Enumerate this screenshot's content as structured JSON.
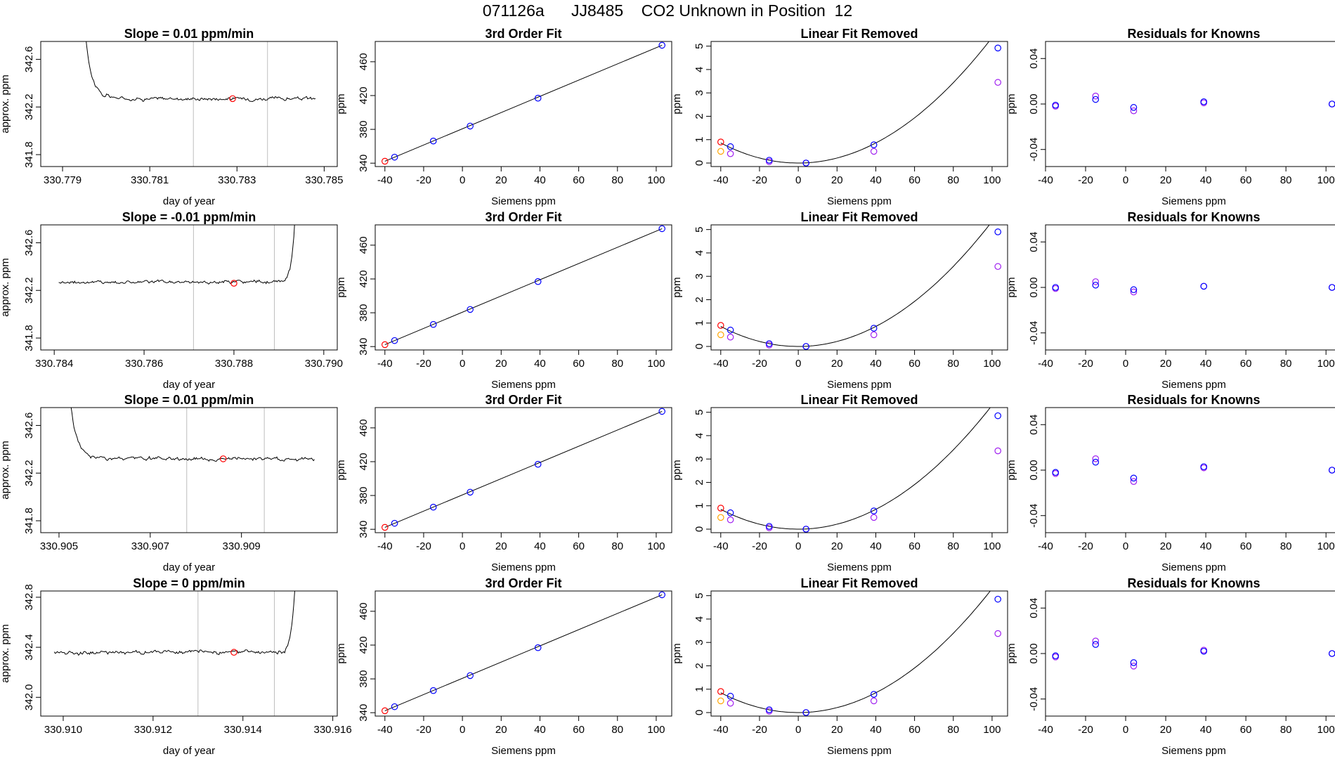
{
  "page_title": "071126a      JJ8485    CO2 Unknown in Position  12",
  "colors": {
    "trace": "#000000",
    "window_line": "#bebebe",
    "known": "#0000ff",
    "unknown": "#ff0000",
    "removed_known": "#a020f0",
    "removed_unknown": "#ffa500",
    "fit_curve": "#000000",
    "residual_a": "#0000ff",
    "residual_b": "#a020f0"
  },
  "chart_data": [
    {
      "type": "line",
      "row": 0,
      "panel": "trace",
      "title": "Slope =  0.01  ppm/min",
      "xlabel": "day of year",
      "ylabel": "approx. ppm",
      "xlim": [
        330.7785,
        330.7853
      ],
      "ylim": [
        341.7,
        342.75
      ],
      "xticks": [
        "330.779",
        "330.781",
        "330.783",
        "330.785"
      ],
      "yticks": [
        "341.8",
        "342.2",
        "342.6"
      ],
      "vlines": [
        330.782,
        330.7837
      ],
      "marker": {
        "x": 330.7829,
        "y": 342.27
      },
      "trace": {
        "x0": 330.7794,
        "x1": 330.7848,
        "base": 342.27,
        "start_high": true,
        "spike_end": false
      }
    },
    {
      "type": "line",
      "row": 1,
      "panel": "trace",
      "title": "Slope =  -0.01  ppm/min",
      "xlabel": "day of year",
      "ylabel": "approx. ppm",
      "xlim": [
        330.7837,
        330.7903
      ],
      "ylim": [
        341.7,
        342.75
      ],
      "xticks": [
        "330.784",
        "330.786",
        "330.788",
        "330.790"
      ],
      "yticks": [
        "341.8",
        "342.2",
        "342.6"
      ],
      "vlines": [
        330.7871,
        330.7889
      ],
      "marker": {
        "x": 330.788,
        "y": 342.26
      },
      "trace": {
        "x0": 330.7841,
        "x1": 330.7894,
        "base": 342.27,
        "start_high": false,
        "spike_end": true
      }
    },
    {
      "type": "line",
      "row": 2,
      "panel": "trace",
      "title": "Slope =  0.01  ppm/min",
      "xlabel": "day of year",
      "ylabel": "approx. ppm",
      "xlim": [
        330.9046,
        330.9111
      ],
      "ylim": [
        341.7,
        342.75
      ],
      "xticks": [
        "330.905",
        "330.907",
        "330.909"
      ],
      "yticks": [
        "341.8",
        "342.2",
        "342.6"
      ],
      "vlines": [
        330.9078,
        330.9095
      ],
      "marker": {
        "x": 330.9086,
        "y": 342.32
      },
      "trace": {
        "x0": 330.9051,
        "x1": 330.9106,
        "base": 342.32,
        "start_high": true,
        "spike_end": false
      }
    },
    {
      "type": "line",
      "row": 3,
      "panel": "trace",
      "title": "Slope =  0  ppm/min",
      "xlabel": "day of year",
      "ylabel": "approx. ppm",
      "xlim": [
        330.9095,
        330.9161
      ],
      "ylim": [
        341.85,
        342.85
      ],
      "xticks": [
        "330.910",
        "330.912",
        "330.914",
        "330.916"
      ],
      "yticks": [
        "342.0",
        "342.4",
        "342.8"
      ],
      "vlines": [
        330.913,
        330.9147
      ],
      "marker": {
        "x": 330.9138,
        "y": 342.36
      },
      "trace": {
        "x0": 330.9098,
        "x1": 330.9152,
        "base": 342.36,
        "start_high": false,
        "spike_end": true
      }
    },
    {
      "type": "scatter",
      "row": 0,
      "panel": "fit",
      "title": "3rd Order Fit",
      "xlabel": "Siemens ppm",
      "ylabel": "ppm",
      "xlim": [
        -45,
        108
      ],
      "ylim": [
        336,
        484
      ],
      "xticks": [
        -40,
        -20,
        0,
        20,
        40,
        60,
        80,
        100
      ],
      "yticks": [
        340,
        380,
        420,
        460
      ],
      "knowns": [
        {
          "x": -35,
          "y": 347.1
        },
        {
          "x": -15,
          "y": 366.2
        },
        {
          "x": 4,
          "y": 383.9
        },
        {
          "x": 39,
          "y": 416.9
        },
        {
          "x": 103,
          "y": 479.5
        }
      ],
      "unknown": {
        "x": -40,
        "y": 342.3
      },
      "fit_line": [
        [
          -40,
          342.3
        ],
        [
          103,
          479.5
        ]
      ]
    },
    {
      "type": "scatter",
      "row": 1,
      "panel": "fit",
      "title": "3rd Order Fit",
      "xlabel": "Siemens ppm",
      "ylabel": "ppm",
      "xlim": [
        -45,
        108
      ],
      "ylim": [
        336,
        484
      ],
      "xticks": [
        -40,
        -20,
        0,
        20,
        40,
        60,
        80,
        100
      ],
      "yticks": [
        340,
        380,
        420,
        460
      ],
      "knowns": [
        {
          "x": -35,
          "y": 347.1
        },
        {
          "x": -15,
          "y": 366.2
        },
        {
          "x": 4,
          "y": 383.9
        },
        {
          "x": 39,
          "y": 416.9
        },
        {
          "x": 103,
          "y": 479.5
        }
      ],
      "unknown": {
        "x": -40,
        "y": 342.3
      },
      "fit_line": [
        [
          -40,
          342.3
        ],
        [
          103,
          479.5
        ]
      ]
    },
    {
      "type": "scatter",
      "row": 2,
      "panel": "fit",
      "title": "3rd Order Fit",
      "xlabel": "Siemens ppm",
      "ylabel": "ppm",
      "xlim": [
        -45,
        108
      ],
      "ylim": [
        336,
        484
      ],
      "xticks": [
        -40,
        -20,
        0,
        20,
        40,
        60,
        80,
        100
      ],
      "yticks": [
        340,
        380,
        420,
        460
      ],
      "knowns": [
        {
          "x": -35,
          "y": 347.1
        },
        {
          "x": -15,
          "y": 366.2
        },
        {
          "x": 4,
          "y": 383.9
        },
        {
          "x": 39,
          "y": 416.9
        },
        {
          "x": 103,
          "y": 479.5
        }
      ],
      "unknown": {
        "x": -40,
        "y": 342.3
      },
      "fit_line": [
        [
          -40,
          342.3
        ],
        [
          103,
          479.5
        ]
      ]
    },
    {
      "type": "scatter",
      "row": 3,
      "panel": "fit",
      "title": "3rd Order Fit",
      "xlabel": "Siemens ppm",
      "ylabel": "ppm",
      "xlim": [
        -45,
        108
      ],
      "ylim": [
        336,
        484
      ],
      "xticks": [
        -40,
        -20,
        0,
        20,
        40,
        60,
        80,
        100
      ],
      "yticks": [
        340,
        380,
        420,
        460
      ],
      "knowns": [
        {
          "x": -35,
          "y": 347.1
        },
        {
          "x": -15,
          "y": 366.2
        },
        {
          "x": 4,
          "y": 383.9
        },
        {
          "x": 39,
          "y": 416.9
        },
        {
          "x": 103,
          "y": 479.5
        }
      ],
      "unknown": {
        "x": -40,
        "y": 342.3
      },
      "fit_line": [
        [
          -40,
          342.3
        ],
        [
          103,
          479.5
        ]
      ]
    },
    {
      "type": "scatter",
      "row": 0,
      "panel": "linear",
      "title": "Linear Fit Removed",
      "xlabel": "Siemens ppm",
      "ylabel": "ppm",
      "xlim": [
        -45,
        108
      ],
      "ylim": [
        -0.15,
        5.2
      ],
      "xticks": [
        -40,
        -20,
        0,
        20,
        40,
        60,
        80,
        100
      ],
      "yticks": [
        0,
        1,
        2,
        3,
        4,
        5
      ],
      "knowns": [
        {
          "x": -35,
          "y": 0.7
        },
        {
          "x": -15,
          "y": 0.12
        },
        {
          "x": 4,
          "y": 0.0
        },
        {
          "x": 39,
          "y": 0.78
        },
        {
          "x": 103,
          "y": 4.92
        }
      ],
      "removed_knowns": [
        {
          "x": -35,
          "y": 0.4
        },
        {
          "x": -15,
          "y": 0.06
        },
        {
          "x": 4,
          "y": 0.0
        },
        {
          "x": 39,
          "y": 0.5
        },
        {
          "x": 103,
          "y": 3.45
        }
      ],
      "unknown": {
        "x": -40,
        "y": 0.9
      },
      "removed_unknown": {
        "x": -40,
        "y": 0.5
      },
      "curve": {
        "a": 0.000537,
        "x0": 0,
        "x1": 103
      }
    },
    {
      "type": "scatter",
      "row": 1,
      "panel": "linear",
      "title": "Linear Fit Removed",
      "xlabel": "Siemens ppm",
      "ylabel": "ppm",
      "xlim": [
        -45,
        108
      ],
      "ylim": [
        -0.15,
        5.2
      ],
      "xticks": [
        -40,
        -20,
        0,
        20,
        40,
        60,
        80,
        100
      ],
      "yticks": [
        0,
        1,
        2,
        3,
        4,
        5
      ],
      "knowns": [
        {
          "x": -35,
          "y": 0.7
        },
        {
          "x": -15,
          "y": 0.12
        },
        {
          "x": 4,
          "y": 0.0
        },
        {
          "x": 39,
          "y": 0.78
        },
        {
          "x": 103,
          "y": 4.9
        }
      ],
      "removed_knowns": [
        {
          "x": -35,
          "y": 0.4
        },
        {
          "x": -15,
          "y": 0.06
        },
        {
          "x": 4,
          "y": 0.0
        },
        {
          "x": 39,
          "y": 0.5
        },
        {
          "x": 103,
          "y": 3.42
        }
      ],
      "unknown": {
        "x": -40,
        "y": 0.9
      },
      "removed_unknown": {
        "x": -40,
        "y": 0.5
      },
      "curve": {
        "a": 0.000535,
        "x0": 0,
        "x1": 103
      }
    },
    {
      "type": "scatter",
      "row": 2,
      "panel": "linear",
      "title": "Linear Fit Removed",
      "xlabel": "Siemens ppm",
      "ylabel": "ppm",
      "xlim": [
        -45,
        108
      ],
      "ylim": [
        -0.15,
        5.2
      ],
      "xticks": [
        -40,
        -20,
        0,
        20,
        40,
        60,
        80,
        100
      ],
      "yticks": [
        0,
        1,
        2,
        3,
        4,
        5
      ],
      "knowns": [
        {
          "x": -35,
          "y": 0.7
        },
        {
          "x": -15,
          "y": 0.12
        },
        {
          "x": 4,
          "y": 0.0
        },
        {
          "x": 39,
          "y": 0.78
        },
        {
          "x": 103,
          "y": 4.85
        }
      ],
      "removed_knowns": [
        {
          "x": -35,
          "y": 0.4
        },
        {
          "x": -15,
          "y": 0.06
        },
        {
          "x": 4,
          "y": 0.0
        },
        {
          "x": 39,
          "y": 0.5
        },
        {
          "x": 103,
          "y": 3.35
        }
      ],
      "unknown": {
        "x": -40,
        "y": 0.9
      },
      "removed_unknown": {
        "x": -40,
        "y": 0.5
      },
      "curve": {
        "a": 0.00053,
        "x0": 0,
        "x1": 103
      }
    },
    {
      "type": "scatter",
      "row": 3,
      "panel": "linear",
      "title": "Linear Fit Removed",
      "xlabel": "Siemens ppm",
      "ylabel": "ppm",
      "xlim": [
        -45,
        108
      ],
      "ylim": [
        -0.15,
        5.2
      ],
      "xticks": [
        -40,
        -20,
        0,
        20,
        40,
        60,
        80,
        100
      ],
      "yticks": [
        0,
        1,
        2,
        3,
        4,
        5
      ],
      "knowns": [
        {
          "x": -35,
          "y": 0.7
        },
        {
          "x": -15,
          "y": 0.12
        },
        {
          "x": 4,
          "y": 0.0
        },
        {
          "x": 39,
          "y": 0.78
        },
        {
          "x": 103,
          "y": 4.85
        }
      ],
      "removed_knowns": [
        {
          "x": -35,
          "y": 0.4
        },
        {
          "x": -15,
          "y": 0.06
        },
        {
          "x": 4,
          "y": 0.0
        },
        {
          "x": 39,
          "y": 0.5
        },
        {
          "x": 103,
          "y": 3.38
        }
      ],
      "unknown": {
        "x": -40,
        "y": 0.9
      },
      "removed_unknown": {
        "x": -40,
        "y": 0.5
      },
      "curve": {
        "a": 0.00053,
        "x0": 0,
        "x1": 103
      }
    },
    {
      "type": "scatter",
      "row": 0,
      "panel": "residuals",
      "title": "Residuals for Knowns",
      "xlabel": "Siemens ppm",
      "ylabel": "ppm",
      "xlim": [
        -40,
        108
      ],
      "ylim": [
        -0.055,
        0.055
      ],
      "xticks": [
        -40,
        -20,
        0,
        20,
        40,
        60,
        80,
        100
      ],
      "yticks": [
        "-0.04",
        "0.00",
        "0.04"
      ],
      "points_a": [
        {
          "x": -35,
          "y": -0.001
        },
        {
          "x": -15,
          "y": 0.004
        },
        {
          "x": 4,
          "y": -0.003
        },
        {
          "x": 39,
          "y": 0.002
        },
        {
          "x": 103,
          "y": 0.0
        }
      ],
      "points_b": [
        {
          "x": -35,
          "y": -0.002
        },
        {
          "x": -15,
          "y": 0.007
        },
        {
          "x": 4,
          "y": -0.006
        },
        {
          "x": 39,
          "y": 0.001
        },
        {
          "x": 103,
          "y": 0.0
        }
      ]
    },
    {
      "type": "scatter",
      "row": 1,
      "panel": "residuals",
      "title": "Residuals for Knowns",
      "xlabel": "Siemens ppm",
      "ylabel": "ppm",
      "xlim": [
        -40,
        108
      ],
      "ylim": [
        -0.055,
        0.055
      ],
      "xticks": [
        -40,
        -20,
        0,
        20,
        40,
        60,
        80,
        100
      ],
      "yticks": [
        "-0.04",
        "0.00",
        "0.04"
      ],
      "points_a": [
        {
          "x": -35,
          "y": 0.0
        },
        {
          "x": -15,
          "y": 0.002
        },
        {
          "x": 4,
          "y": -0.002
        },
        {
          "x": 39,
          "y": 0.001
        },
        {
          "x": 103,
          "y": 0.0
        }
      ],
      "points_b": [
        {
          "x": -35,
          "y": -0.001
        },
        {
          "x": -15,
          "y": 0.005
        },
        {
          "x": 4,
          "y": -0.004
        },
        {
          "x": 39,
          "y": 0.001
        },
        {
          "x": 103,
          "y": 0.0
        }
      ]
    },
    {
      "type": "scatter",
      "row": 2,
      "panel": "residuals",
      "title": "Residuals for Knowns",
      "xlabel": "Siemens ppm",
      "ylabel": "ppm",
      "xlim": [
        -40,
        108
      ],
      "ylim": [
        -0.055,
        0.055
      ],
      "xticks": [
        -40,
        -20,
        0,
        20,
        40,
        60,
        80,
        100
      ],
      "yticks": [
        "-0.04",
        "0.00",
        "0.04"
      ],
      "points_a": [
        {
          "x": -35,
          "y": -0.002
        },
        {
          "x": -15,
          "y": 0.007
        },
        {
          "x": 4,
          "y": -0.007
        },
        {
          "x": 39,
          "y": 0.003
        },
        {
          "x": 103,
          "y": 0.0
        }
      ],
      "points_b": [
        {
          "x": -35,
          "y": -0.003
        },
        {
          "x": -15,
          "y": 0.01
        },
        {
          "x": 4,
          "y": -0.01
        },
        {
          "x": 39,
          "y": 0.002
        },
        {
          "x": 103,
          "y": 0.0
        }
      ]
    },
    {
      "type": "scatter",
      "row": 3,
      "panel": "residuals",
      "title": "Residuals for Knowns",
      "xlabel": "Siemens ppm",
      "ylabel": "ppm",
      "xlim": [
        -40,
        108
      ],
      "ylim": [
        -0.055,
        0.055
      ],
      "xticks": [
        -40,
        -20,
        0,
        20,
        40,
        60,
        80,
        100
      ],
      "yticks": [
        "-0.04",
        "0.00",
        "0.04"
      ],
      "points_a": [
        {
          "x": -35,
          "y": -0.002
        },
        {
          "x": -15,
          "y": 0.008
        },
        {
          "x": 4,
          "y": -0.008
        },
        {
          "x": 39,
          "y": 0.002
        },
        {
          "x": 103,
          "y": 0.0
        }
      ],
      "points_b": [
        {
          "x": -35,
          "y": -0.003
        },
        {
          "x": -15,
          "y": 0.011
        },
        {
          "x": 4,
          "y": -0.011
        },
        {
          "x": 39,
          "y": 0.003
        },
        {
          "x": 103,
          "y": 0.0
        }
      ]
    }
  ]
}
